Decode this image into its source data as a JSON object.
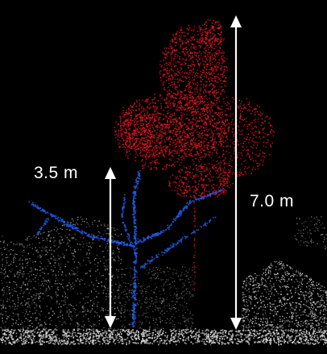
{
  "measurements": {
    "lower": {
      "label": "3.5 m",
      "value_m": 3.5
    },
    "total": {
      "label": "7.0 m",
      "value_m": 7.0
    }
  },
  "colors": {
    "background": "#000000",
    "crown_points": "#e0141e",
    "stem_points": "#1f5be6",
    "ground_points": "#d8d8d8",
    "annotation": "#ffffff"
  },
  "legend_visible": false
}
